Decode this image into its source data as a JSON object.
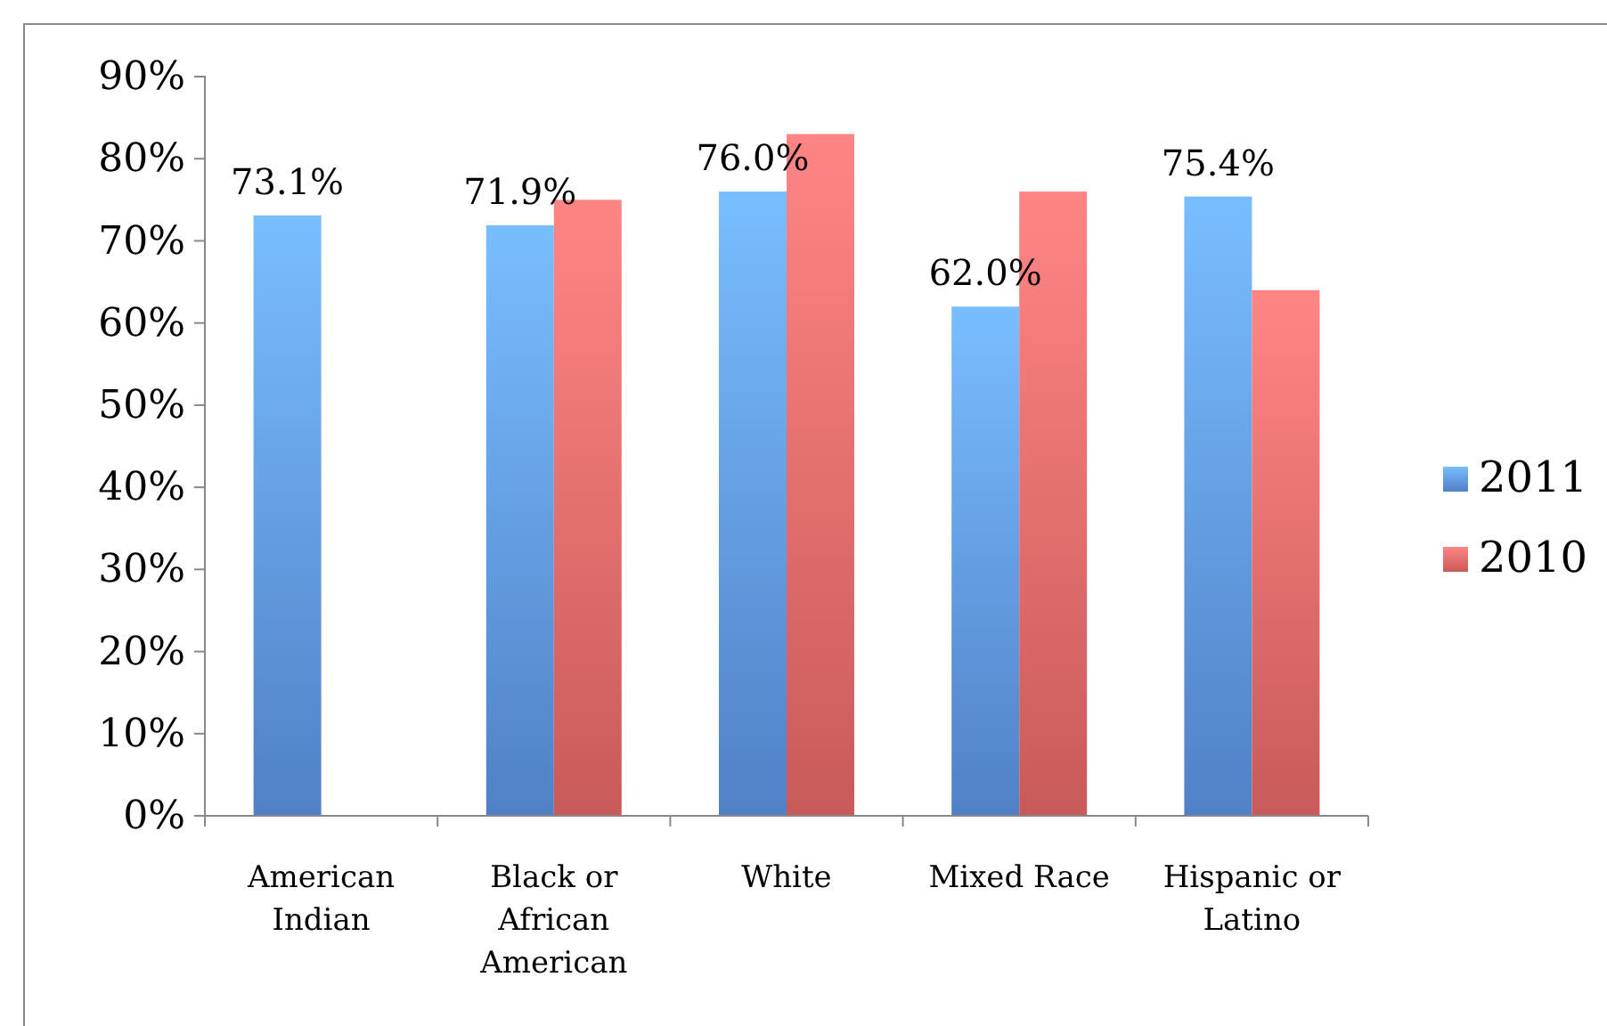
{
  "chart_data": {
    "type": "bar",
    "categories": [
      "American Indian",
      "Black or African American",
      "White",
      "Mixed Race",
      "Hispanic or Latino"
    ],
    "series": [
      {
        "name": "2011",
        "color": "#5a8fdc",
        "values": [
          73.1,
          71.9,
          76.0,
          62.0,
          75.4
        ],
        "value_labels": [
          "73.1%",
          "71.9%",
          "76.0%",
          "62.0%",
          "75.4%"
        ]
      },
      {
        "name": "2010",
        "color": "#e06464",
        "values": [
          null,
          75,
          83,
          76,
          64
        ]
      }
    ],
    "ylim": [
      0,
      90
    ],
    "yticks": [
      {
        "value": 0,
        "label": "0%"
      },
      {
        "value": 10,
        "label": "10%"
      },
      {
        "value": 20,
        "label": "20%"
      },
      {
        "value": 30,
        "label": "30%"
      },
      {
        "value": 40,
        "label": "40%"
      },
      {
        "value": 50,
        "label": "50%"
      },
      {
        "value": 60,
        "label": "60%"
      },
      {
        "value": 70,
        "label": "70%"
      },
      {
        "value": 80,
        "label": "80%"
      },
      {
        "value": 90,
        "label": "90%"
      }
    ],
    "grid": false,
    "legend": "right"
  }
}
